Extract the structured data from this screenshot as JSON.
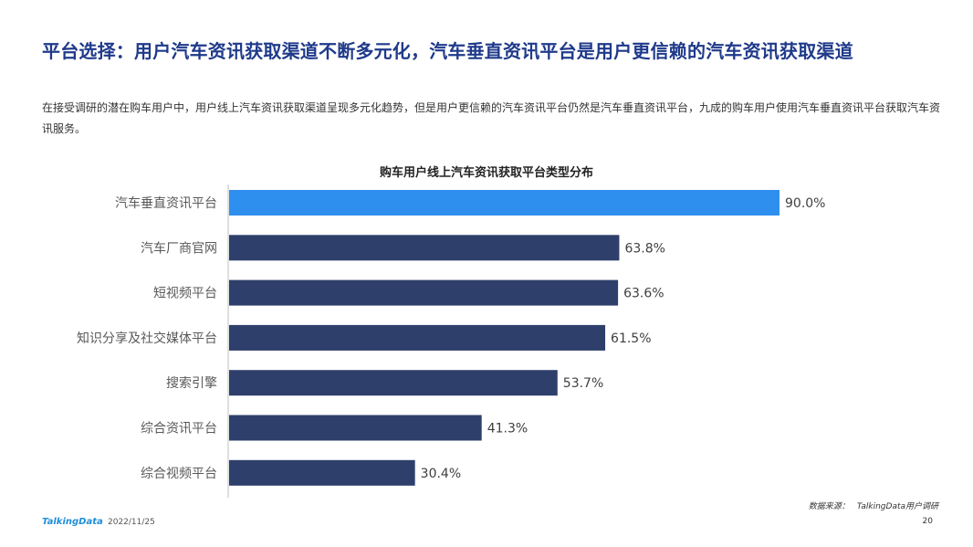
{
  "header": {
    "title": "平台选择：用户汽车资讯获取渠道不断多元化，汽车垂直资讯平台是用户更信赖的汽车资讯获取渠道",
    "description": "在接受调研的潜在购车用户中，用户线上汽车资讯获取渠道呈现多元化趋势，但是用户更信赖的汽车资讯平台仍然是汽车垂直资讯平台，九成的购车用户使用汽车垂直资讯平台获取汽车资讯服务。"
  },
  "chart_data": {
    "type": "bar",
    "orientation": "horizontal",
    "title": "购车用户线上汽车资讯获取平台类型分布",
    "categories": [
      "汽车垂直资讯平台",
      "汽车厂商官网",
      "短视频平台",
      "知识分享及社交媒体平台",
      "搜索引擎",
      "综合资讯平台",
      "综合视频平台"
    ],
    "values": [
      90.0,
      63.8,
      63.6,
      61.5,
      53.7,
      41.3,
      30.4
    ],
    "value_labels": [
      "90.0%",
      "63.8%",
      "63.6%",
      "61.5%",
      "53.7%",
      "41.3%",
      "30.4%"
    ],
    "xlim": [
      0,
      100
    ],
    "highlight_index": 0,
    "colors": {
      "highlight": "#2f8fee",
      "default": "#2e3f6b",
      "axis": "#bfbfbf",
      "category_text": "#595959",
      "value_text": "#404040"
    }
  },
  "footer": {
    "logo_text": "TalkingData",
    "date": "2022/11/25",
    "source_label": "数据来源：",
    "source_value": "TalkingData用户调研",
    "page": "20"
  }
}
